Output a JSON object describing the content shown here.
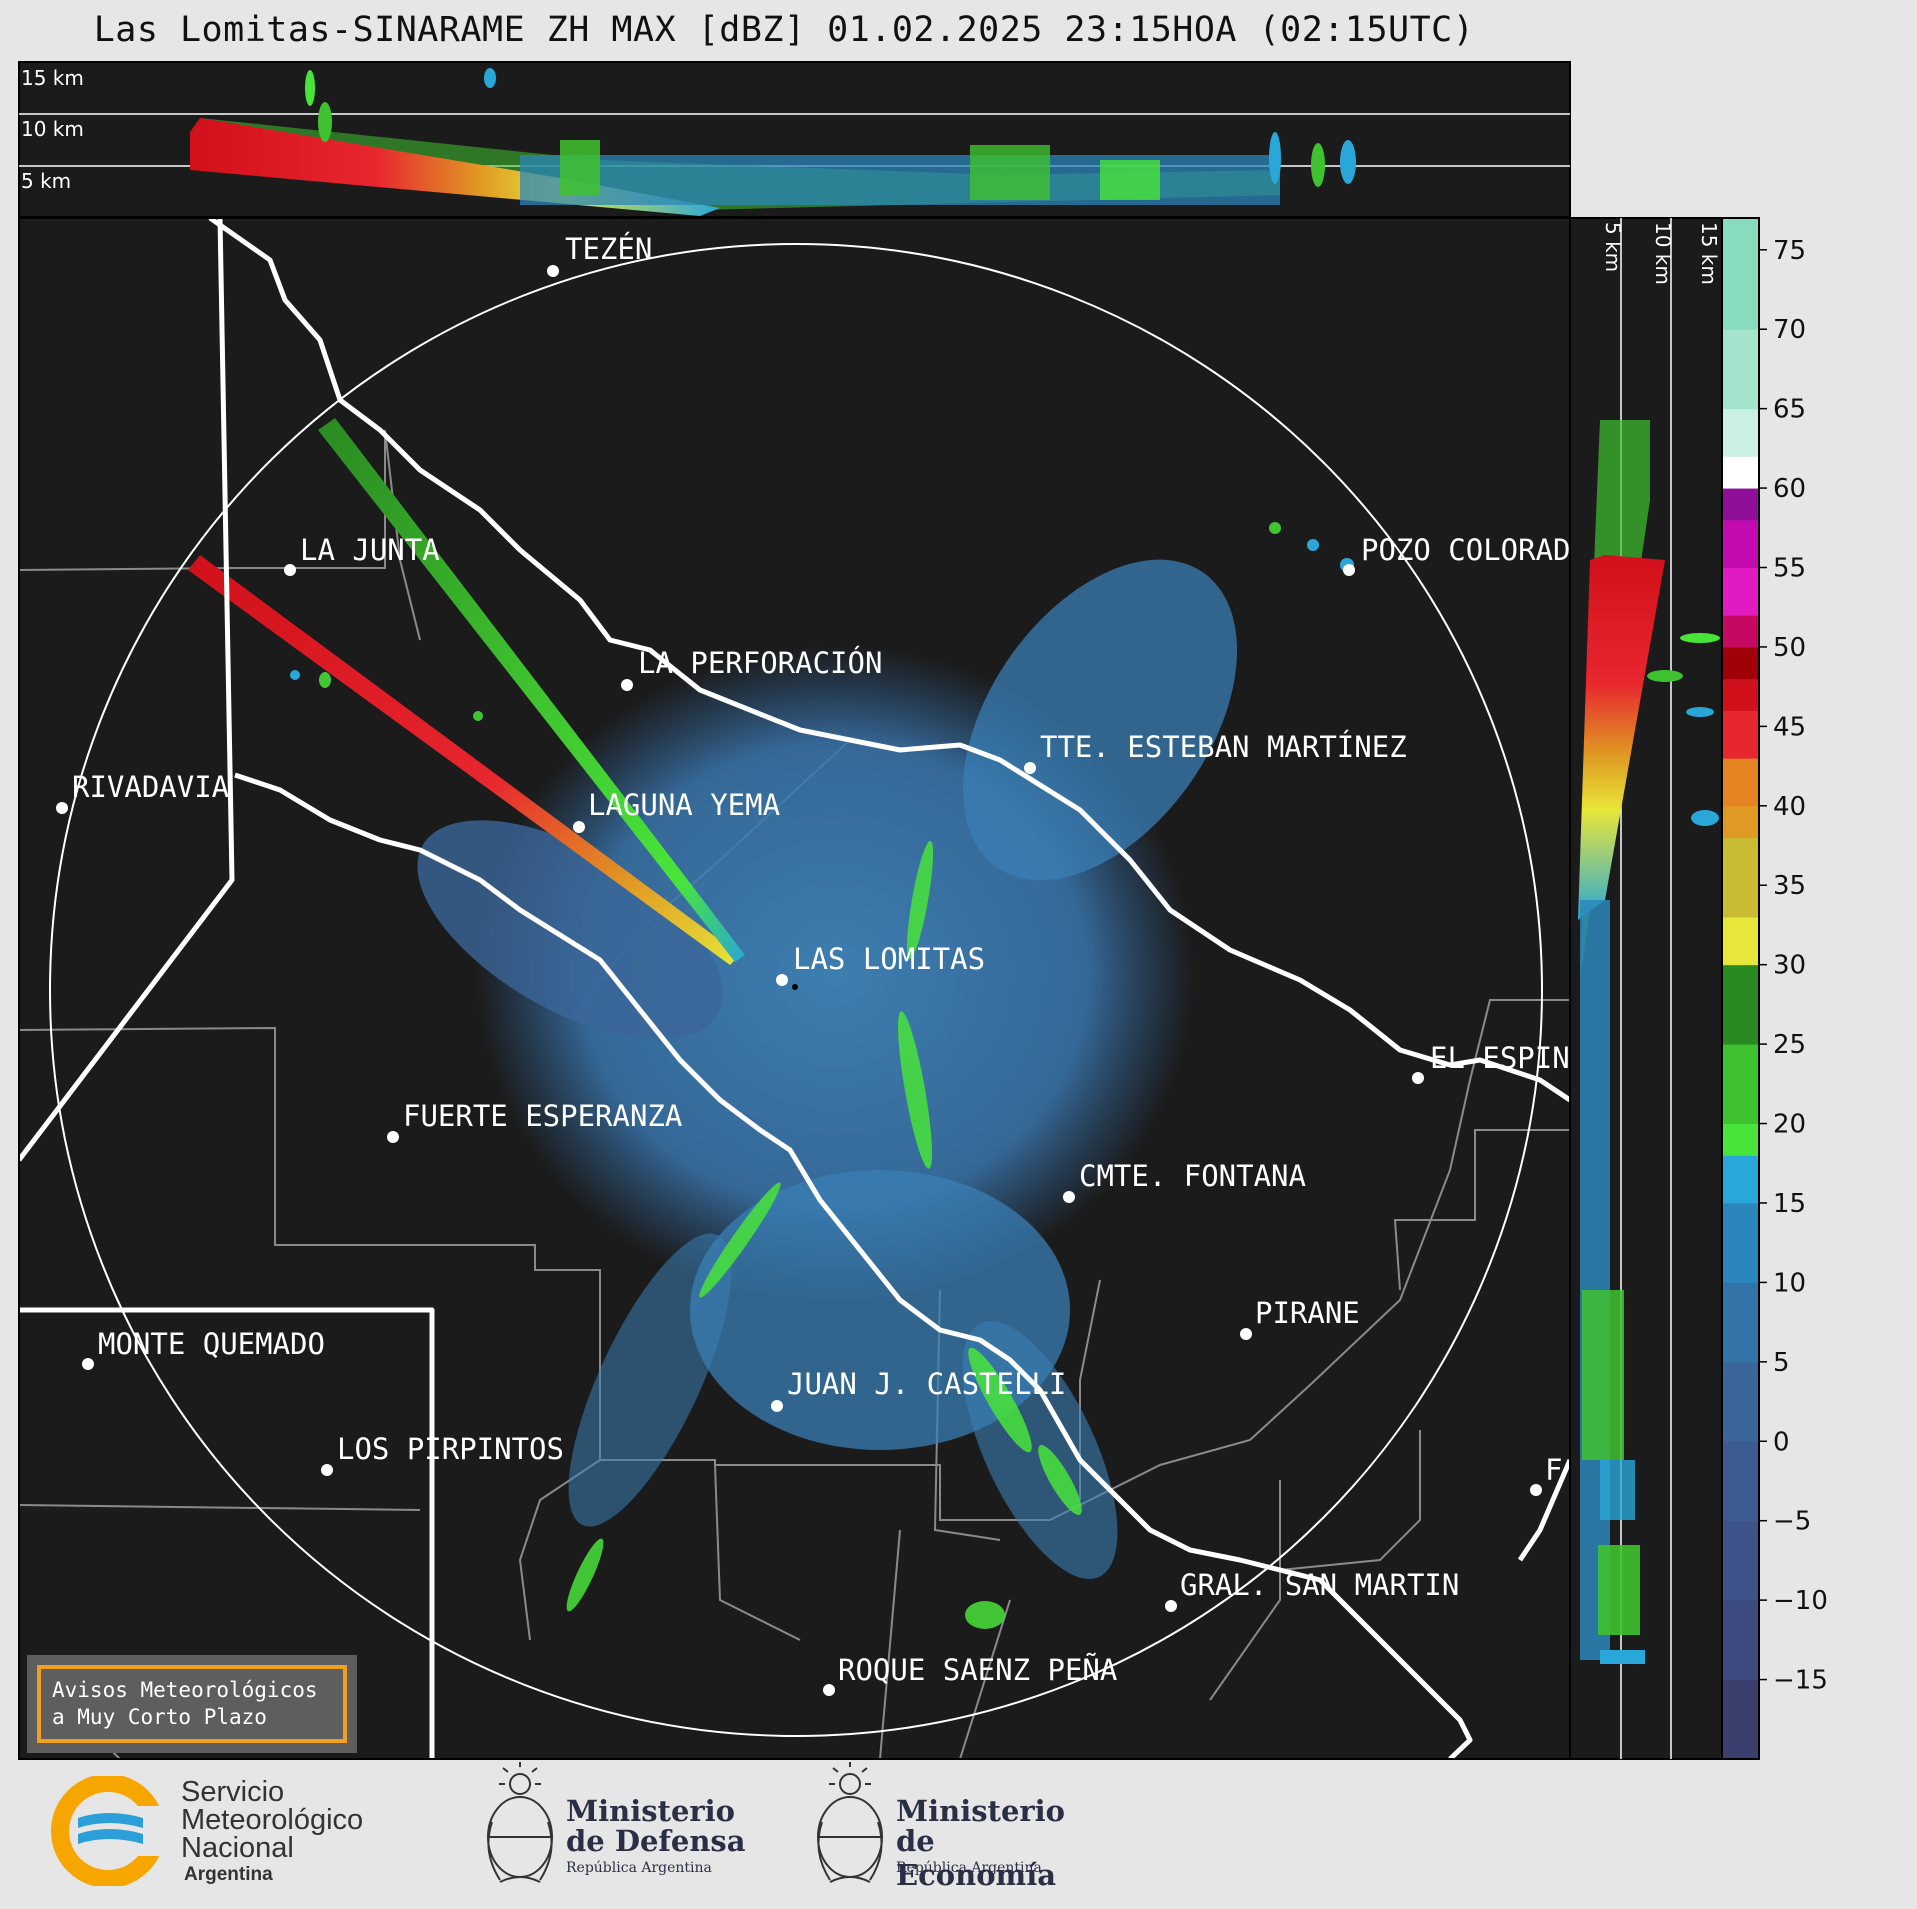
{
  "title": "Las Lomitas-SINARAME ZH MAX [dBZ] 01.02.2025 23:15HOA (02:15UTC)",
  "top_profile": {
    "height_labels": [
      "15 km",
      "10 km",
      "5 km"
    ]
  },
  "side_profile": {
    "height_labels": [
      "5 km",
      "10 km",
      "15 km"
    ]
  },
  "cities": [
    {
      "name": "TEZÉN"
    },
    {
      "name": "POZO COLORAD"
    },
    {
      "name": "LA JUNTA"
    },
    {
      "name": "LA PERFORACIÓN"
    },
    {
      "name": "TTE. ESTEBAN MARTÍNEZ"
    },
    {
      "name": "RIVADAVIA"
    },
    {
      "name": "LAGUNA YEMA"
    },
    {
      "name": "LAS LOMITAS"
    },
    {
      "name": "EL ESPIN"
    },
    {
      "name": "FUERTE ESPERANZA"
    },
    {
      "name": "CMTE. FONTANA"
    },
    {
      "name": "PIRANE"
    },
    {
      "name": "MONTE QUEMADO"
    },
    {
      "name": "JUAN J. CASTELLI"
    },
    {
      "name": "LOS PIRPINTOS"
    },
    {
      "name": "F"
    },
    {
      "name": "GRAL. SAN MARTIN"
    },
    {
      "name": "ROQUE SAENZ PEÑA"
    }
  ],
  "colorbar": {
    "unit": "dBZ",
    "min": -20,
    "max": 77,
    "ticks": [
      75,
      70,
      65,
      60,
      55,
      50,
      45,
      40,
      35,
      30,
      25,
      20,
      15,
      10,
      5,
      0,
      "−5",
      "−10",
      "−15"
    ],
    "tick_values": [
      75,
      70,
      65,
      60,
      55,
      50,
      45,
      40,
      35,
      30,
      25,
      20,
      15,
      10,
      5,
      0,
      -5,
      -10,
      -15
    ],
    "bands": [
      {
        "from": -20,
        "to": -15,
        "color": "#3b3f6e"
      },
      {
        "from": -15,
        "to": -10,
        "color": "#3c4a80"
      },
      {
        "from": -10,
        "to": -5,
        "color": "#3d5288"
      },
      {
        "from": -5,
        "to": 0,
        "color": "#3c5b91"
      },
      {
        "from": 0,
        "to": 5,
        "color": "#3b6699"
      },
      {
        "from": 5,
        "to": 10,
        "color": "#3273a8"
      },
      {
        "from": 10,
        "to": 15,
        "color": "#2b86bb"
      },
      {
        "from": 15,
        "to": 18,
        "color": "#29a7d8"
      },
      {
        "from": 18,
        "to": 20,
        "color": "#49e43a"
      },
      {
        "from": 20,
        "to": 25,
        "color": "#3fc22f"
      },
      {
        "from": 25,
        "to": 30,
        "color": "#2a8a22"
      },
      {
        "from": 30,
        "to": 33,
        "color": "#e7e63a"
      },
      {
        "from": 33,
        "to": 38,
        "color": "#c9bb33"
      },
      {
        "from": 38,
        "to": 40,
        "color": "#e09a23"
      },
      {
        "from": 40,
        "to": 43,
        "color": "#e58321"
      },
      {
        "from": 43,
        "to": 46,
        "color": "#e8262f"
      },
      {
        "from": 46,
        "to": 48,
        "color": "#d0101a"
      },
      {
        "from": 48,
        "to": 50,
        "color": "#a00008"
      },
      {
        "from": 50,
        "to": 52,
        "color": "#c50860"
      },
      {
        "from": 52,
        "to": 55,
        "color": "#e21ac2"
      },
      {
        "from": 55,
        "to": 58,
        "color": "#c20ab0"
      },
      {
        "from": 58,
        "to": 60,
        "color": "#8f0f99"
      },
      {
        "from": 60,
        "to": 62,
        "color": "#ffffff"
      },
      {
        "from": 62,
        "to": 65,
        "color": "#c9f0e0"
      },
      {
        "from": 65,
        "to": 70,
        "color": "#a4e4cc"
      },
      {
        "from": 70,
        "to": 77,
        "color": "#86dcbc"
      }
    ]
  },
  "notice": {
    "line1": "Avisos Meteorológicos",
    "line2": "a Muy Corto Plazo"
  },
  "logos": {
    "smn": {
      "line1": "Servicio",
      "line2": "Meteorológico",
      "line3": "Nacional",
      "line4": "Argentina"
    },
    "defensa": {
      "line1": "Ministerio",
      "line2": "de Defensa",
      "line3": "República Argentina"
    },
    "economia": {
      "line1": "Ministerio",
      "line2": "de Economía",
      "line3": "República Argentina"
    }
  },
  "colors": {
    "map_bg": "#1b1b1b",
    "accent_orange": "#f0a020",
    "radar_blue": "#3a7fb5",
    "smn_blue": "#2b9fd9",
    "smn_yellow": "#f7a600"
  }
}
